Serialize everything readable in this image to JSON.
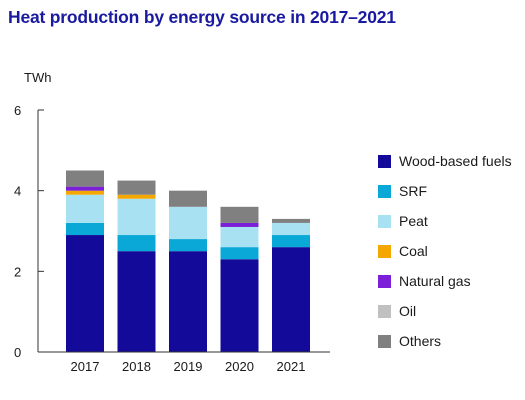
{
  "title": "Heat production by energy source in 2017–2021",
  "colors": {
    "wood": "#140a9a",
    "srf": "#0aa8d6",
    "peat": "#a8e2f2",
    "coal": "#f4a700",
    "natural_gas": "#7b1fd8",
    "oil": "#c0c0c0",
    "others": "#808080",
    "axis": "#333333"
  },
  "chart_data": {
    "type": "bar",
    "stacked": true,
    "title": "Heat production by energy source in 2017–2021",
    "ylabel": "TWh",
    "xlabel": "",
    "ylim": [
      0,
      6
    ],
    "yticks": [
      "0",
      "2",
      "4",
      "6"
    ],
    "categories": [
      "2017",
      "2018",
      "2019",
      "2020",
      "2021"
    ],
    "series": [
      {
        "name": "Wood-based fuels",
        "color_key": "wood",
        "values": [
          2.9,
          2.5,
          2.5,
          2.3,
          2.6
        ]
      },
      {
        "name": "SRF",
        "color_key": "srf",
        "values": [
          0.3,
          0.4,
          0.3,
          0.3,
          0.3
        ]
      },
      {
        "name": "Peat",
        "color_key": "peat",
        "values": [
          0.7,
          0.9,
          0.8,
          0.5,
          0.3
        ]
      },
      {
        "name": "Coal",
        "color_key": "coal",
        "values": [
          0.1,
          0.1,
          0.0,
          0.0,
          0.0
        ]
      },
      {
        "name": "Natural gas",
        "color_key": "natural_gas",
        "values": [
          0.1,
          0.0,
          0.0,
          0.1,
          0.0
        ]
      },
      {
        "name": "Oil",
        "color_key": "oil",
        "values": [
          0.0,
          0.0,
          0.0,
          0.0,
          0.0
        ]
      },
      {
        "name": "Others",
        "color_key": "others",
        "values": [
          0.4,
          0.35,
          0.4,
          0.4,
          0.1
        ]
      }
    ],
    "legend_position": "right"
  },
  "legend": [
    {
      "label": "Wood-based fuels",
      "color_key": "wood"
    },
    {
      "label": "SRF",
      "color_key": "srf"
    },
    {
      "label": "Peat",
      "color_key": "peat"
    },
    {
      "label": "Coal",
      "color_key": "coal"
    },
    {
      "label": "Natural gas",
      "color_key": "natural_gas"
    },
    {
      "label": "Oil",
      "color_key": "oil"
    },
    {
      "label": "Others",
      "color_key": "others"
    }
  ]
}
